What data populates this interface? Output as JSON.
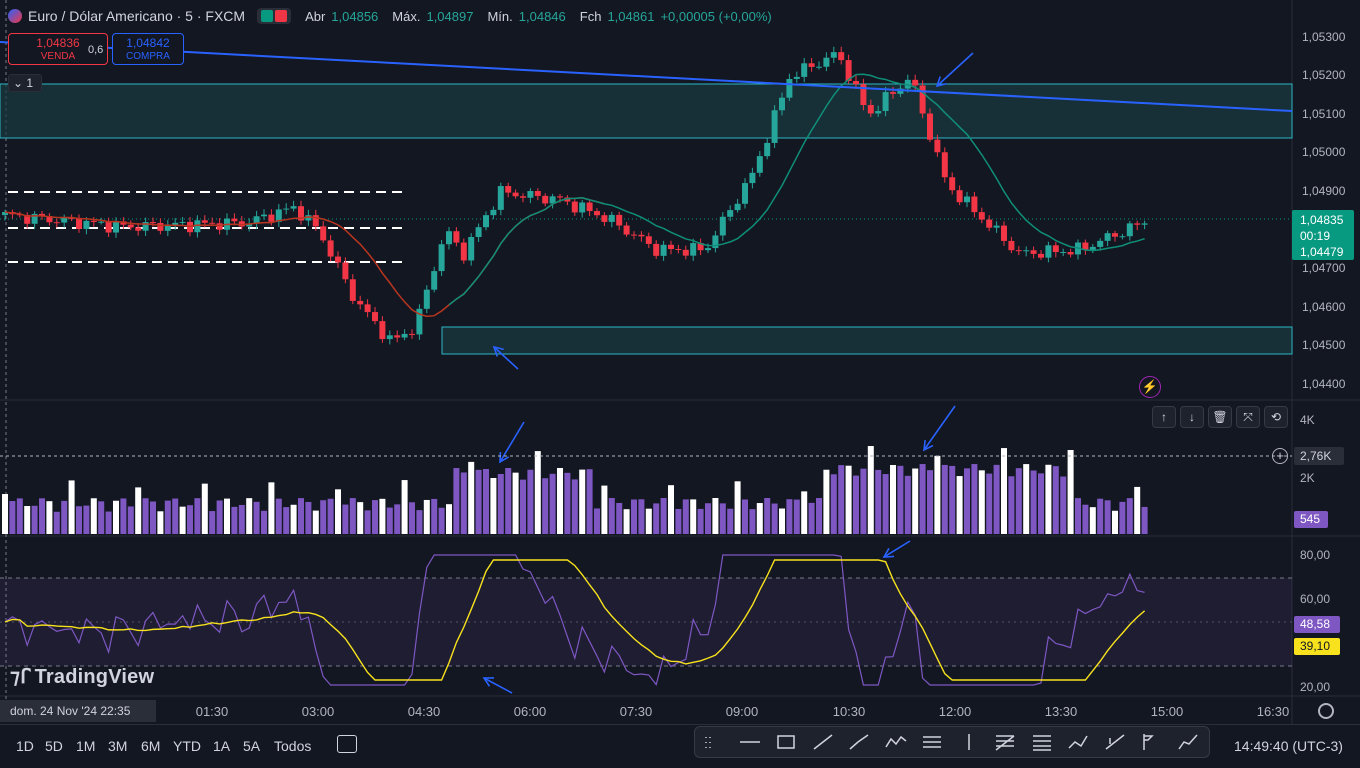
{
  "header": {
    "symbol": "Euro / Dólar Americano · 5 · FXCM",
    "open_label": "Abr",
    "open": "1,04856",
    "high_label": "Máx.",
    "high": "1,04897",
    "low_label": "Mín.",
    "low": "1,04846",
    "close_label": "Fch",
    "close": "1,04861",
    "change": "+0,00005 (+0,00%)"
  },
  "trade": {
    "sell_price": "1,04836",
    "sell_label": "VENDA",
    "spread": "0,6",
    "buy_price": "1,04842",
    "buy_label": "COMPRA",
    "collapse_count": "1"
  },
  "price_axis": {
    "ticks": [
      "1,05300",
      "1,05200",
      "1,05100",
      "1,05000",
      "1,04900",
      "1,04700",
      "1,04600",
      "1,04500",
      "1,04400"
    ],
    "current_price": "1,04835",
    "countdown": "00:19",
    "last_label": "1,04479"
  },
  "volume": {
    "ticks": [
      "4K",
      "2K"
    ],
    "crosshair": "2,76K",
    "current": "545"
  },
  "rsi": {
    "ticks": [
      "80,00",
      "60,00",
      "20,00"
    ],
    "rsi_value": "48,58",
    "ma_value": "39,10"
  },
  "time_axis": {
    "date_chip": "dom. 24 Nov '24  22:35",
    "labels": [
      "01:30",
      "03:00",
      "04:30",
      "06:00",
      "07:30",
      "09:00",
      "10:30",
      "12:00",
      "13:30",
      "15:00",
      "16:30"
    ]
  },
  "pane_controls": [
    "up",
    "down",
    "delete",
    "collapse",
    "maximize"
  ],
  "timeframes": [
    "1D",
    "5D",
    "1M",
    "3M",
    "6M",
    "YTD",
    "1A",
    "5A",
    "Todos"
  ],
  "clock": "14:49:40 (UTC-3)",
  "branding": "TradingView",
  "colors": {
    "background": "#131722",
    "up": "#26a69a",
    "down": "#f23645",
    "zone": "#1a3c42",
    "trend": "#2962ff",
    "rsi": "#7e57c2",
    "rsi_ma": "#f7e21d"
  },
  "chart_data": {
    "type": "candlestick",
    "symbol": "EUR/USD",
    "interval": "5",
    "ylim": [
      1.0438,
      1.0535
    ],
    "rsi_levels": [
      70,
      30
    ]
  }
}
